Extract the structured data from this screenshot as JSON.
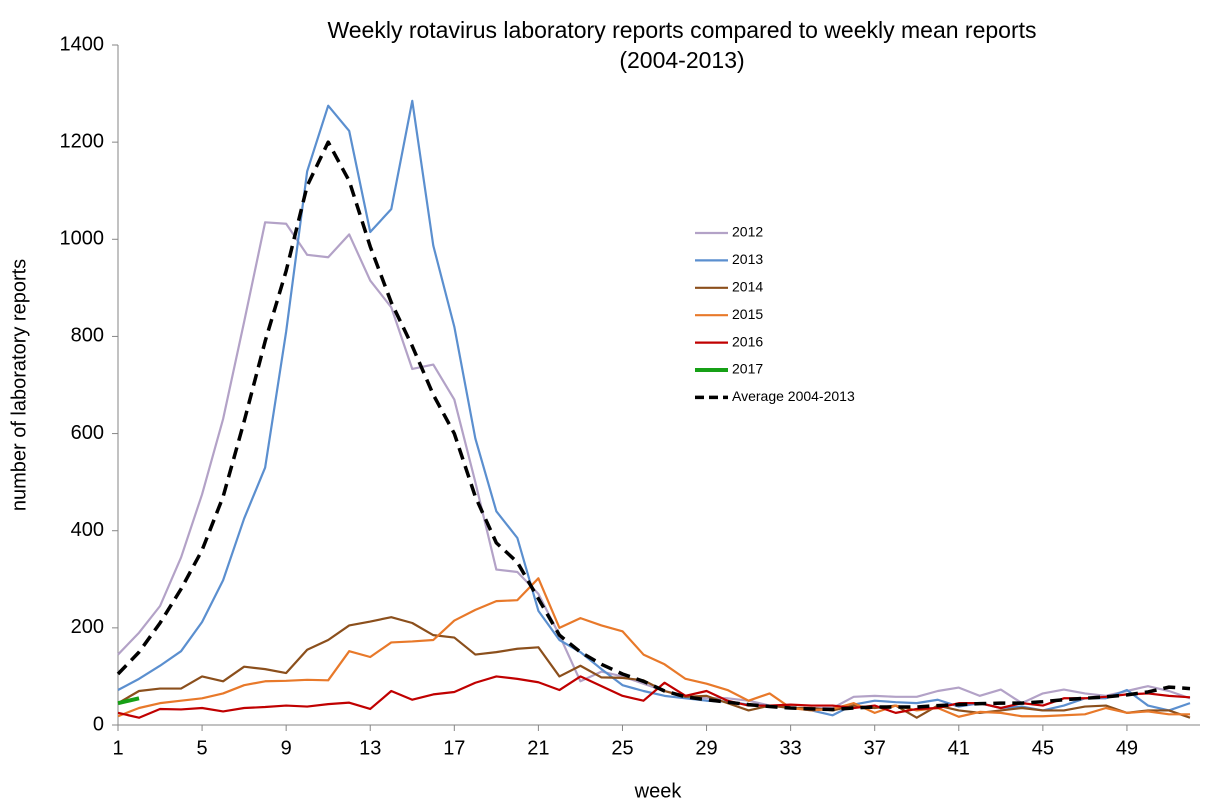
{
  "chart_data": {
    "type": "line",
    "title": [
      "Weekly rotavirus laboratory reports compared to weekly mean reports",
      "(2004-2013)"
    ],
    "xlabel": "week",
    "ylabel": "number of laboratory reports",
    "x": [
      1,
      2,
      3,
      4,
      5,
      6,
      7,
      8,
      9,
      10,
      11,
      12,
      13,
      14,
      15,
      16,
      17,
      18,
      19,
      20,
      21,
      22,
      23,
      24,
      25,
      26,
      27,
      28,
      29,
      30,
      31,
      32,
      33,
      34,
      35,
      36,
      37,
      38,
      39,
      40,
      41,
      42,
      43,
      44,
      45,
      46,
      47,
      48,
      49,
      50,
      51,
      52
    ],
    "xlim": [
      1,
      52
    ],
    "xticks": [
      1,
      5,
      9,
      13,
      17,
      21,
      25,
      29,
      33,
      37,
      41,
      45,
      49
    ],
    "ylim": [
      0,
      1400
    ],
    "yticks": [
      0,
      200,
      400,
      600,
      800,
      1000,
      1200,
      1400
    ],
    "legend": "right",
    "series": [
      {
        "name": "2012",
        "color": "#b3a2c7",
        "values": [
          145,
          190,
          245,
          345,
          475,
          630,
          830,
          1035,
          1032,
          968,
          963,
          1010,
          915,
          860,
          733,
          742,
          670,
          500,
          320,
          315,
          270,
          185,
          90,
          110,
          100,
          85,
          70,
          60,
          55,
          55,
          50,
          40,
          35,
          35,
          35,
          58,
          60,
          58,
          58,
          70,
          77,
          60,
          73,
          45,
          65,
          73,
          65,
          60,
          70,
          80,
          70,
          55
        ]
      },
      {
        "name": "2013",
        "color": "#5b8fcf",
        "values": [
          72,
          95,
          122,
          152,
          212,
          298,
          425,
          530,
          810,
          1140,
          1275,
          1223,
          1015,
          1062,
          1285,
          987,
          820,
          590,
          440,
          385,
          235,
          175,
          150,
          115,
          82,
          70,
          60,
          55,
          50,
          48,
          42,
          40,
          36,
          30,
          20,
          42,
          50,
          47,
          45,
          52,
          38,
          45,
          35,
          38,
          30,
          40,
          55,
          55,
          72,
          40,
          30,
          45
        ]
      },
      {
        "name": "2014",
        "color": "#8b4f1c",
        "values": [
          45,
          70,
          75,
          75,
          100,
          90,
          120,
          115,
          107,
          155,
          175,
          205,
          213,
          222,
          210,
          185,
          180,
          145,
          150,
          157,
          160,
          100,
          122,
          98,
          97,
          92,
          70,
          58,
          60,
          45,
          30,
          40,
          35,
          35,
          30,
          40,
          35,
          40,
          15,
          40,
          30,
          25,
          30,
          35,
          30,
          30,
          38,
          40,
          25,
          30,
          30,
          15
        ]
      },
      {
        "name": "2015",
        "color": "#e8792a",
        "values": [
          18,
          35,
          45,
          50,
          55,
          65,
          82,
          90,
          91,
          93,
          92,
          152,
          140,
          170,
          172,
          175,
          215,
          237,
          255,
          257,
          302,
          200,
          220,
          205,
          193,
          145,
          125,
          95,
          85,
          72,
          50,
          65,
          35,
          30,
          33,
          45,
          25,
          40,
          30,
          35,
          17,
          27,
          25,
          18,
          18,
          20,
          22,
          35,
          25,
          28,
          22,
          22
        ]
      },
      {
        "name": "2016",
        "color": "#c00000",
        "values": [
          25,
          15,
          33,
          32,
          35,
          28,
          35,
          37,
          40,
          38,
          43,
          46,
          33,
          70,
          52,
          63,
          68,
          87,
          100,
          95,
          88,
          72,
          100,
          80,
          60,
          50,
          87,
          60,
          70,
          50,
          40,
          40,
          42,
          40,
          40,
          35,
          40,
          25,
          33,
          35,
          45,
          45,
          35,
          45,
          40,
          55,
          55,
          58,
          63,
          65,
          60,
          57
        ]
      },
      {
        "name": "2017",
        "color": "#16a016",
        "values": [
          45,
          55,
          null,
          null,
          null,
          null,
          null,
          null,
          null,
          null,
          null,
          null,
          null,
          null,
          null,
          null,
          null,
          null,
          null,
          null,
          null,
          null,
          null,
          null,
          null,
          null,
          null,
          null,
          null,
          null,
          null,
          null,
          null,
          null,
          null,
          null,
          null,
          null,
          null,
          null,
          null,
          null,
          null,
          null,
          null,
          null,
          null,
          null,
          null,
          null,
          null,
          null
        ]
      },
      {
        "name": "Average 2004-2013",
        "color": "#000000",
        "style": "dashed",
        "values": [
          105,
          150,
          210,
          280,
          360,
          470,
          625,
          790,
          935,
          1110,
          1200,
          1120,
          985,
          870,
          780,
          680,
          600,
          470,
          375,
          335,
          260,
          185,
          150,
          125,
          105,
          90,
          70,
          58,
          52,
          47,
          42,
          38,
          35,
          33,
          32,
          35,
          37,
          37,
          37,
          40,
          42,
          44,
          45,
          45,
          48,
          52,
          55,
          58,
          62,
          68,
          78,
          75
        ]
      }
    ]
  }
}
